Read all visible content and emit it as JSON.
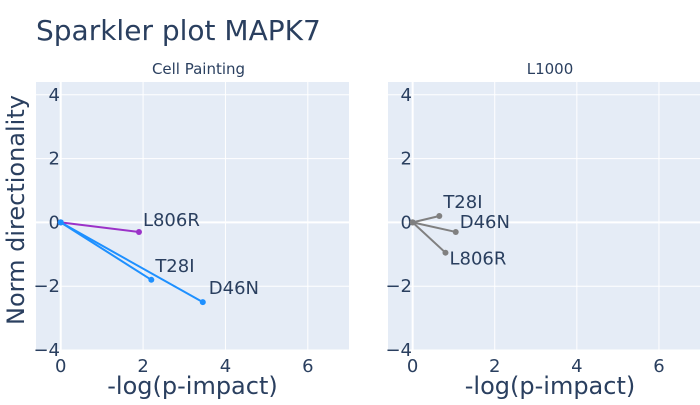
{
  "title": "Sparkler plot MAPK7",
  "y_axis_title": "Norm directionality",
  "colors": {
    "plot_background": "#e5ecf6",
    "grid": "#ffffff",
    "text": "#2a3f5f",
    "L806R_cell_painting": "#9b32c8",
    "T28I_cell_painting": "#1e90ff",
    "D46N_cell_painting": "#1e90ff",
    "l1000": "#808080"
  },
  "chart_data": [
    {
      "type": "line",
      "title": "Cell Painting",
      "xlabel": "-log(p-impact)",
      "ylabel": "Norm directionality",
      "xlim": [
        -0.6,
        7.0
      ],
      "ylim": [
        -4,
        4.4
      ],
      "x_ticks": [
        0,
        2,
        4,
        6
      ],
      "y_ticks": [
        -4,
        -2,
        0,
        2,
        4
      ],
      "grid": true,
      "origin": [
        0,
        0
      ],
      "series": [
        {
          "name": "L806R",
          "x": [
            0,
            1.9
          ],
          "y": [
            0,
            -0.3
          ],
          "color": "#9b32c8"
        },
        {
          "name": "T28I",
          "x": [
            0,
            2.2
          ],
          "y": [
            0,
            -1.8
          ],
          "color": "#1e90ff"
        },
        {
          "name": "D46N",
          "x": [
            0,
            3.45
          ],
          "y": [
            0,
            -2.5
          ],
          "color": "#1e90ff"
        }
      ]
    },
    {
      "type": "line",
      "title": "L1000",
      "xlabel": "-log(p-impact)",
      "ylabel": "",
      "xlim": [
        -0.6,
        7.0
      ],
      "ylim": [
        -4,
        4.4
      ],
      "x_ticks": [
        0,
        2,
        4,
        6
      ],
      "y_ticks": [
        -4,
        -2,
        0,
        2,
        4
      ],
      "grid": true,
      "origin": [
        0,
        0
      ],
      "series": [
        {
          "name": "T28I",
          "x": [
            0,
            0.65
          ],
          "y": [
            0,
            0.2
          ],
          "color": "#808080"
        },
        {
          "name": "D46N",
          "x": [
            0,
            1.05
          ],
          "y": [
            0,
            -0.3
          ],
          "color": "#808080"
        },
        {
          "name": "L806R",
          "x": [
            0,
            0.8
          ],
          "y": [
            0,
            -0.95
          ],
          "color": "#808080"
        }
      ]
    }
  ]
}
